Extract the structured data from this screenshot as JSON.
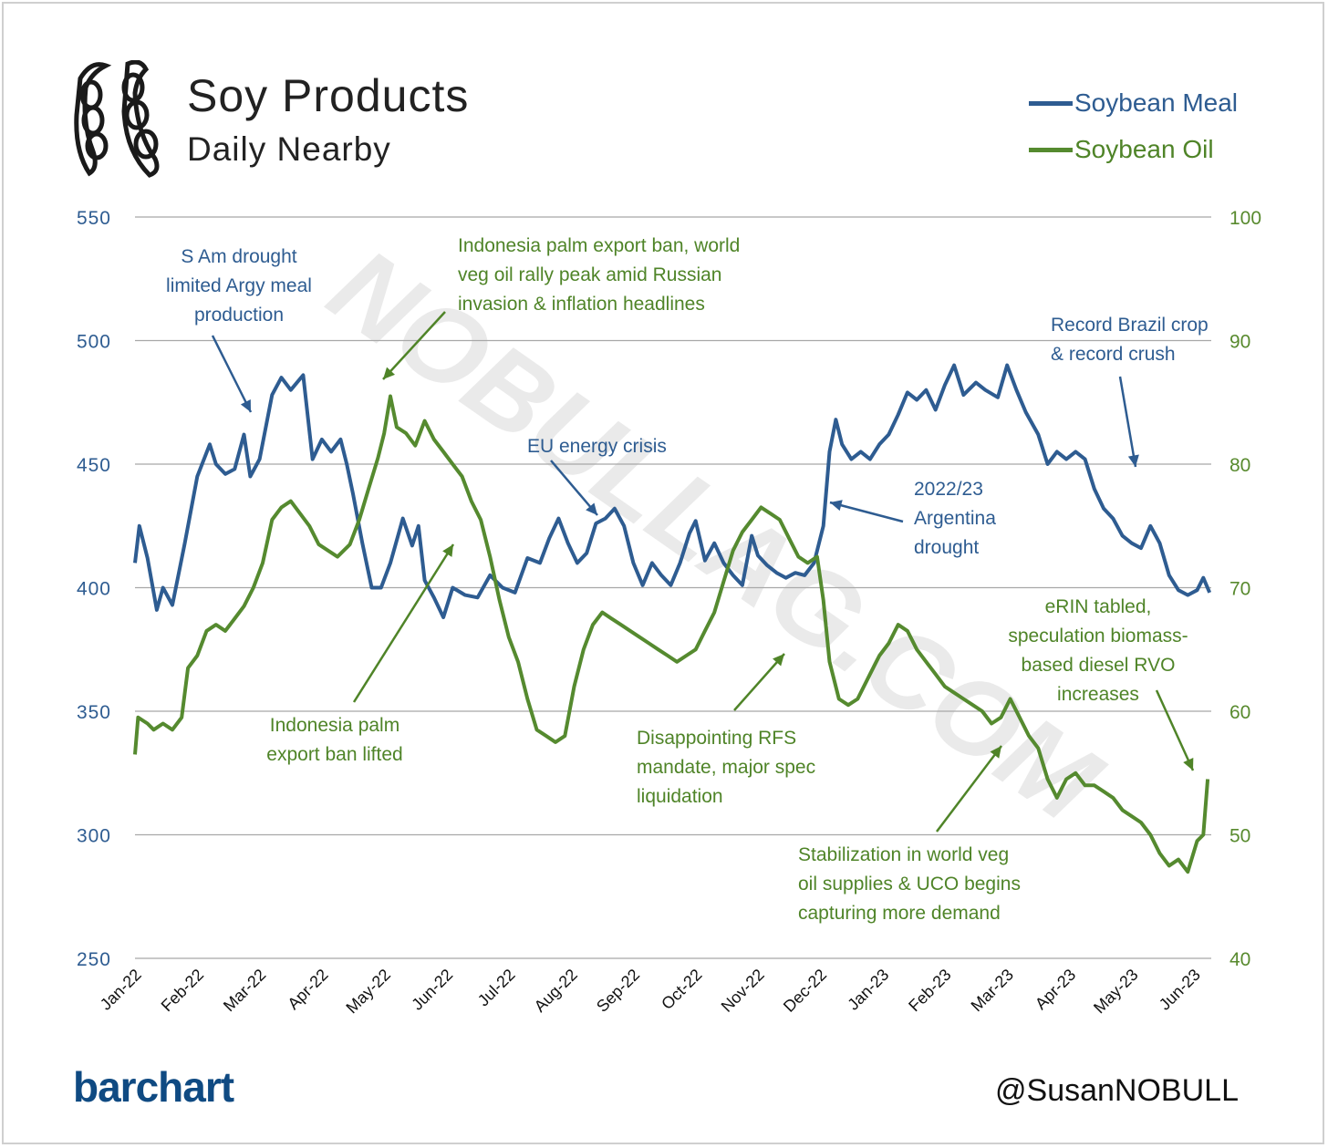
{
  "header": {
    "title": "Soy Products",
    "subtitle": "Daily Nearby",
    "logo_icon": "soybean-pods-icon"
  },
  "legend": {
    "items": [
      {
        "label": "Soybean Meal",
        "color": "#2e5c91"
      },
      {
        "label": "Soybean Oil",
        "color": "#558a2f"
      }
    ]
  },
  "footer": {
    "brand": "barchart",
    "handle": "@SusanNOBULL"
  },
  "watermark": "NOBULLAG.COM",
  "chart_data": {
    "type": "line",
    "x_labels": [
      "Jan-22",
      "Feb-22",
      "Mar-22",
      "Apr-22",
      "May-22",
      "Jun-22",
      "Jul-22",
      "Aug-22",
      "Sep-22",
      "Oct-22",
      "Nov-22",
      "Dec-22",
      "Jan-23",
      "Feb-23",
      "Mar-23",
      "Apr-23",
      "May-23",
      "Jun-23"
    ],
    "left_axis": {
      "min": 250,
      "max": 550,
      "ticks": [
        "250",
        "300",
        "350",
        "400",
        "450",
        "500",
        "550"
      ]
    },
    "right_axis": {
      "min": 40,
      "max": 100,
      "ticks": [
        "40",
        "50",
        "60",
        "70",
        "80",
        "90",
        "100"
      ]
    },
    "grid": true,
    "legend_position": "top-right",
    "series": [
      {
        "name": "Soybean Meal",
        "axis": "left",
        "color": "#2e5c91",
        "points": [
          [
            0,
            410
          ],
          [
            0.07,
            425
          ],
          [
            0.2,
            412
          ],
          [
            0.35,
            391
          ],
          [
            0.45,
            400
          ],
          [
            0.6,
            393
          ],
          [
            0.8,
            418
          ],
          [
            1.0,
            445
          ],
          [
            1.2,
            458
          ],
          [
            1.3,
            450
          ],
          [
            1.45,
            446
          ],
          [
            1.6,
            448
          ],
          [
            1.75,
            462
          ],
          [
            1.85,
            445
          ],
          [
            2.0,
            452
          ],
          [
            2.2,
            478
          ],
          [
            2.35,
            485
          ],
          [
            2.5,
            480
          ],
          [
            2.7,
            486
          ],
          [
            2.85,
            452
          ],
          [
            3.0,
            460
          ],
          [
            3.15,
            455
          ],
          [
            3.3,
            460
          ],
          [
            3.4,
            450
          ],
          [
            3.5,
            438
          ],
          [
            3.65,
            418
          ],
          [
            3.8,
            400
          ],
          [
            3.95,
            400
          ],
          [
            4.1,
            410
          ],
          [
            4.3,
            428
          ],
          [
            4.45,
            417
          ],
          [
            4.55,
            425
          ],
          [
            4.65,
            403
          ],
          [
            4.8,
            396
          ],
          [
            4.95,
            388
          ],
          [
            5.1,
            400
          ],
          [
            5.3,
            397
          ],
          [
            5.5,
            396
          ],
          [
            5.7,
            405
          ],
          [
            5.9,
            400
          ],
          [
            6.1,
            398
          ],
          [
            6.3,
            412
          ],
          [
            6.5,
            410
          ],
          [
            6.65,
            420
          ],
          [
            6.8,
            428
          ],
          [
            6.95,
            418
          ],
          [
            7.1,
            410
          ],
          [
            7.25,
            414
          ],
          [
            7.4,
            426
          ],
          [
            7.55,
            428
          ],
          [
            7.7,
            432
          ],
          [
            7.85,
            425
          ],
          [
            8.0,
            410
          ],
          [
            8.15,
            401
          ],
          [
            8.3,
            410
          ],
          [
            8.45,
            405
          ],
          [
            8.6,
            401
          ],
          [
            8.75,
            410
          ],
          [
            8.9,
            422
          ],
          [
            9.0,
            427
          ],
          [
            9.15,
            411
          ],
          [
            9.3,
            418
          ],
          [
            9.45,
            410
          ],
          [
            9.6,
            405
          ],
          [
            9.75,
            401
          ],
          [
            9.9,
            421
          ],
          [
            10.0,
            413
          ],
          [
            10.15,
            409
          ],
          [
            10.3,
            406
          ],
          [
            10.45,
            404
          ],
          [
            10.6,
            406
          ],
          [
            10.75,
            405
          ],
          [
            10.9,
            410
          ],
          [
            11.05,
            425
          ],
          [
            11.15,
            455
          ],
          [
            11.25,
            468
          ],
          [
            11.35,
            458
          ],
          [
            11.5,
            452
          ],
          [
            11.65,
            455
          ],
          [
            11.8,
            452
          ],
          [
            11.95,
            458
          ],
          [
            12.1,
            462
          ],
          [
            12.25,
            470
          ],
          [
            12.4,
            479
          ],
          [
            12.55,
            476
          ],
          [
            12.7,
            480
          ],
          [
            12.85,
            472
          ],
          [
            13.0,
            482
          ],
          [
            13.15,
            490
          ],
          [
            13.3,
            478
          ],
          [
            13.5,
            483
          ],
          [
            13.65,
            480
          ],
          [
            13.85,
            477
          ],
          [
            14.0,
            490
          ],
          [
            14.15,
            480
          ],
          [
            14.3,
            471
          ],
          [
            14.5,
            462
          ],
          [
            14.65,
            450
          ],
          [
            14.8,
            455
          ],
          [
            14.95,
            452
          ],
          [
            15.1,
            455
          ],
          [
            15.25,
            452
          ],
          [
            15.4,
            440
          ],
          [
            15.55,
            432
          ],
          [
            15.7,
            428
          ],
          [
            15.85,
            421
          ],
          [
            16.0,
            418
          ],
          [
            16.15,
            416
          ],
          [
            16.3,
            425
          ],
          [
            16.45,
            418
          ],
          [
            16.6,
            405
          ],
          [
            16.75,
            399
          ],
          [
            16.9,
            397
          ],
          [
            17.05,
            399
          ],
          [
            17.15,
            404
          ],
          [
            17.25,
            398
          ]
        ]
      },
      {
        "name": "Soybean Oil",
        "axis": "right",
        "color": "#558a2f",
        "points": [
          [
            0,
            56.5
          ],
          [
            0.05,
            59.5
          ],
          [
            0.2,
            59
          ],
          [
            0.3,
            58.5
          ],
          [
            0.45,
            59
          ],
          [
            0.6,
            58.5
          ],
          [
            0.75,
            59.5
          ],
          [
            0.85,
            63.5
          ],
          [
            1.0,
            64.5
          ],
          [
            1.15,
            66.5
          ],
          [
            1.3,
            67
          ],
          [
            1.45,
            66.5
          ],
          [
            1.6,
            67.5
          ],
          [
            1.75,
            68.5
          ],
          [
            1.9,
            70
          ],
          [
            2.05,
            72
          ],
          [
            2.2,
            75.5
          ],
          [
            2.35,
            76.5
          ],
          [
            2.5,
            77
          ],
          [
            2.65,
            76
          ],
          [
            2.8,
            75
          ],
          [
            2.95,
            73.5
          ],
          [
            3.1,
            73
          ],
          [
            3.25,
            72.5
          ],
          [
            3.45,
            73.5
          ],
          [
            3.6,
            75.5
          ],
          [
            3.75,
            78
          ],
          [
            3.9,
            80.5
          ],
          [
            4.0,
            82.5
          ],
          [
            4.1,
            85.5
          ],
          [
            4.2,
            83
          ],
          [
            4.35,
            82.5
          ],
          [
            4.5,
            81.5
          ],
          [
            4.65,
            83.5
          ],
          [
            4.8,
            82
          ],
          [
            4.95,
            81
          ],
          [
            5.1,
            80
          ],
          [
            5.25,
            79
          ],
          [
            5.4,
            77
          ],
          [
            5.55,
            75.5
          ],
          [
            5.7,
            72.5
          ],
          [
            5.85,
            69
          ],
          [
            6.0,
            66
          ],
          [
            6.15,
            64
          ],
          [
            6.3,
            61
          ],
          [
            6.45,
            58.5
          ],
          [
            6.6,
            58
          ],
          [
            6.75,
            57.5
          ],
          [
            6.9,
            58
          ],
          [
            7.05,
            62
          ],
          [
            7.2,
            65
          ],
          [
            7.35,
            67
          ],
          [
            7.5,
            68
          ],
          [
            7.65,
            67.5
          ],
          [
            7.8,
            67
          ],
          [
            7.95,
            66.5
          ],
          [
            8.1,
            66
          ],
          [
            8.25,
            65.5
          ],
          [
            8.4,
            65
          ],
          [
            8.55,
            64.5
          ],
          [
            8.7,
            64
          ],
          [
            8.85,
            64.5
          ],
          [
            9.0,
            65
          ],
          [
            9.15,
            66.5
          ],
          [
            9.3,
            68
          ],
          [
            9.45,
            70.5
          ],
          [
            9.6,
            73
          ],
          [
            9.75,
            74.5
          ],
          [
            9.9,
            75.5
          ],
          [
            10.05,
            76.5
          ],
          [
            10.2,
            76
          ],
          [
            10.35,
            75.5
          ],
          [
            10.5,
            74
          ],
          [
            10.65,
            72.5
          ],
          [
            10.8,
            72
          ],
          [
            10.95,
            72.5
          ],
          [
            11.05,
            69
          ],
          [
            11.15,
            64
          ],
          [
            11.3,
            61
          ],
          [
            11.45,
            60.5
          ],
          [
            11.6,
            61
          ],
          [
            11.8,
            63
          ],
          [
            11.95,
            64.5
          ],
          [
            12.1,
            65.5
          ],
          [
            12.25,
            67
          ],
          [
            12.4,
            66.5
          ],
          [
            12.55,
            65
          ],
          [
            12.7,
            64
          ],
          [
            12.85,
            63
          ],
          [
            13.0,
            62
          ],
          [
            13.15,
            61.5
          ],
          [
            13.3,
            61
          ],
          [
            13.45,
            60.5
          ],
          [
            13.6,
            60
          ],
          [
            13.75,
            59
          ],
          [
            13.9,
            59.5
          ],
          [
            14.05,
            61
          ],
          [
            14.2,
            59.5
          ],
          [
            14.35,
            58
          ],
          [
            14.5,
            57
          ],
          [
            14.65,
            54.5
          ],
          [
            14.8,
            53
          ],
          [
            14.95,
            54.5
          ],
          [
            15.1,
            55
          ],
          [
            15.25,
            54
          ],
          [
            15.4,
            54
          ],
          [
            15.55,
            53.5
          ],
          [
            15.7,
            53
          ],
          [
            15.85,
            52
          ],
          [
            16.0,
            51.5
          ],
          [
            16.15,
            51
          ],
          [
            16.3,
            50
          ],
          [
            16.45,
            48.5
          ],
          [
            16.6,
            47.5
          ],
          [
            16.75,
            48
          ],
          [
            16.9,
            47
          ],
          [
            17.05,
            49.5
          ],
          [
            17.15,
            50
          ],
          [
            17.22,
            54.5
          ]
        ]
      }
    ],
    "annotations": [
      {
        "lines": [
          "S Am drought",
          "limited Argy meal",
          "production"
        ],
        "color": "blue"
      },
      {
        "lines": [
          "Indonesia palm export ban, world",
          "veg oil rally peak amid Russian",
          "invasion & inflation headlines"
        ],
        "color": "green"
      },
      {
        "lines": [
          "Record Brazil crop",
          "& record crush"
        ],
        "color": "blue"
      },
      {
        "lines": [
          "EU energy crisis"
        ],
        "color": "blue"
      },
      {
        "lines": [
          "2022/23",
          "Argentina",
          "drought"
        ],
        "color": "blue"
      },
      {
        "lines": [
          "eRIN tabled,",
          "speculation biomass-",
          "based diesel RVO",
          "increases"
        ],
        "color": "green"
      },
      {
        "lines": [
          "Indonesia palm",
          "export ban lifted"
        ],
        "color": "green"
      },
      {
        "lines": [
          "Disappointing RFS",
          "mandate, major spec",
          "liquidation"
        ],
        "color": "green"
      },
      {
        "lines": [
          "Stabilization in world veg",
          "oil supplies & UCO begins",
          "capturing more demand"
        ],
        "color": "green"
      }
    ]
  }
}
